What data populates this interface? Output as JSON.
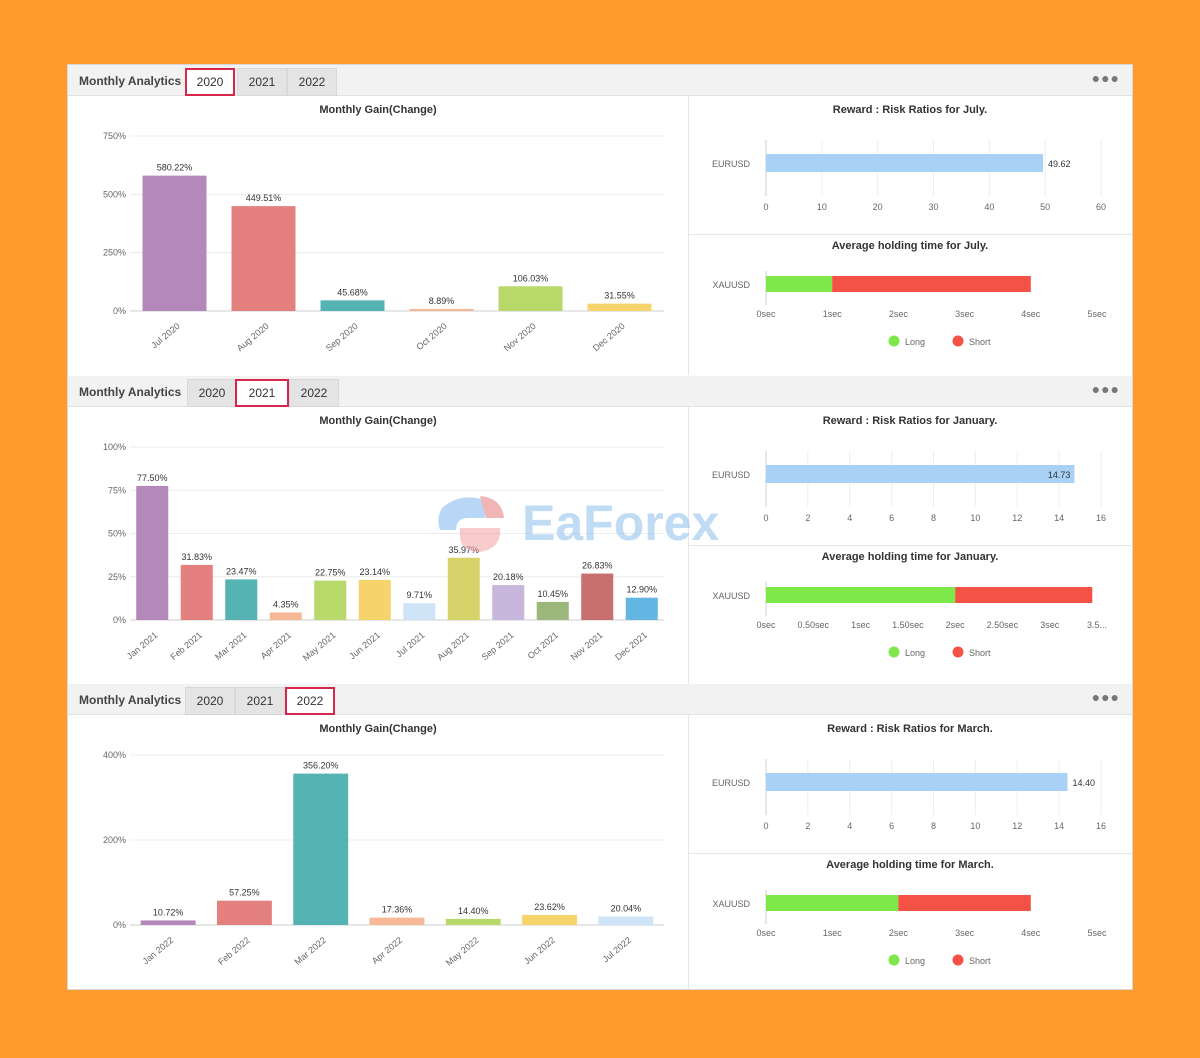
{
  "colors": {
    "background": "#FF9A2E",
    "active_tab_border": "#d6264b",
    "reward_bar": "#a9d1f5",
    "long": "#7ee84a",
    "short": "#f55246"
  },
  "watermark": {
    "text": "EaForex",
    "icon": "eaforex-logo-icon"
  },
  "panels": [
    {
      "title": "Monthly Analytics",
      "tabs": [
        "2020",
        "2021",
        "2022"
      ],
      "active_tab": 0,
      "menu_icon": "more-dots-icon",
      "gain_chart": {
        "type": "bar",
        "title": "Monthly Gain(Change)",
        "y_ticks": [
          "750%",
          "500%",
          "250%",
          "0%"
        ],
        "y_tick_values": [
          750,
          500,
          250,
          0
        ],
        "ylim": [
          0,
          750
        ],
        "categories": [
          "Jul 2020",
          "Aug 2020",
          "Sep 2020",
          "Oct 2020",
          "Nov 2020",
          "Dec 2020"
        ],
        "values": [
          580.22,
          449.51,
          45.68,
          8.89,
          106.03,
          31.55
        ],
        "labels": [
          "580.22%",
          "449.51%",
          "45.68%",
          "8.89%",
          "106.03%",
          "31.55%"
        ],
        "colors": [
          "#b488b8",
          "#e4807e",
          "#55b3b4",
          "#f7b898",
          "#b9d86a",
          "#f7d46b"
        ]
      },
      "rr_chart": {
        "type": "bar",
        "title": "Reward : Risk Ratios for July.",
        "category": "EURUSD",
        "value": 49.62,
        "label": "49.62",
        "x_ticks": [
          "0",
          "10",
          "20",
          "30",
          "40",
          "50",
          "60"
        ],
        "x_tick_values": [
          0,
          10,
          20,
          30,
          40,
          50,
          60
        ],
        "xlim": [
          0,
          60
        ]
      },
      "hold_chart": {
        "type": "bar",
        "title": "Average holding time for July.",
        "category": "XAUUSD",
        "long_value": 1,
        "short_value": 3,
        "x_ticks": [
          "0sec",
          "1sec",
          "2sec",
          "3sec",
          "4sec",
          "5sec"
        ],
        "x_tick_values": [
          0,
          1,
          2,
          3,
          4,
          5
        ],
        "xlim": [
          0,
          5
        ],
        "legend": [
          "Long",
          "Short"
        ]
      }
    },
    {
      "title": "Monthly Analytics",
      "tabs": [
        "2020",
        "2021",
        "2022"
      ],
      "active_tab": 1,
      "menu_icon": "more-dots-icon",
      "gain_chart": {
        "type": "bar",
        "title": "Monthly Gain(Change)",
        "y_ticks": [
          "100%",
          "75%",
          "50%",
          "25%",
          "0%"
        ],
        "y_tick_values": [
          100,
          75,
          50,
          25,
          0
        ],
        "ylim": [
          0,
          100
        ],
        "categories": [
          "Jan 2021",
          "Feb 2021",
          "Mar 2021",
          "Apr 2021",
          "May 2021",
          "Jun 2021",
          "Jul 2021",
          "Aug 2021",
          "Sep 2021",
          "Oct 2021",
          "Nov 2021",
          "Dec 2021"
        ],
        "values": [
          77.5,
          31.83,
          23.47,
          4.35,
          22.75,
          23.14,
          9.71,
          35.97,
          20.18,
          10.45,
          26.83,
          12.9
        ],
        "labels": [
          "77.50%",
          "31.83%",
          "23.47%",
          "4.35%",
          "22.75%",
          "23.14%",
          "9.71%",
          "35.97%",
          "20.18%",
          "10.45%",
          "26.83%",
          "12.90%"
        ],
        "colors": [
          "#b488b8",
          "#e4807e",
          "#55b3b4",
          "#f7b898",
          "#b9d86a",
          "#f7d46b",
          "#cfe5f7",
          "#d5d36a",
          "#c8b6dc",
          "#9bb87a",
          "#c87070",
          "#63b6e2"
        ]
      },
      "rr_chart": {
        "type": "bar",
        "title": "Reward : Risk Ratios for January.",
        "category": "EURUSD",
        "value": 14.73,
        "label": "14.73",
        "x_ticks": [
          "0",
          "2",
          "4",
          "6",
          "8",
          "10",
          "12",
          "14",
          "16"
        ],
        "x_tick_values": [
          0,
          2,
          4,
          6,
          8,
          10,
          12,
          14,
          16
        ],
        "xlim": [
          0,
          16
        ]
      },
      "hold_chart": {
        "type": "bar",
        "title": "Average holding time for January.",
        "category": "XAUUSD",
        "long_value": 2,
        "short_value": 1.45,
        "x_ticks": [
          "0sec",
          "0.50sec",
          "1sec",
          "1.50sec",
          "2sec",
          "2.50sec",
          "3sec",
          "3.5..."
        ],
        "x_tick_values": [
          0,
          0.5,
          1,
          1.5,
          2,
          2.5,
          3,
          3.5
        ],
        "xlim": [
          0,
          3.5
        ],
        "legend": [
          "Long",
          "Short"
        ]
      }
    },
    {
      "title": "Monthly Analytics",
      "tabs": [
        "2020",
        "2021",
        "2022"
      ],
      "active_tab": 2,
      "menu_icon": "more-dots-icon",
      "gain_chart": {
        "type": "bar",
        "title": "Monthly Gain(Change)",
        "y_ticks": [
          "400%",
          "200%",
          "0%"
        ],
        "y_tick_values": [
          400,
          200,
          0
        ],
        "ylim": [
          0,
          400
        ],
        "categories": [
          "Jan 2022",
          "Feb 2022",
          "Mar 2022",
          "Apr 2022",
          "May 2022",
          "Jun 2022",
          "Jul 2022"
        ],
        "values": [
          10.72,
          57.25,
          356.2,
          17.36,
          14.4,
          23.62,
          20.04
        ],
        "labels": [
          "10.72%",
          "57.25%",
          "356.20%",
          "17.36%",
          "14.40%",
          "23.62%",
          "20.04%"
        ],
        "colors": [
          "#b488b8",
          "#e4807e",
          "#55b3b4",
          "#f7b898",
          "#b9d86a",
          "#f7d46b",
          "#cfe5f7"
        ]
      },
      "rr_chart": {
        "type": "bar",
        "title": "Reward : Risk Ratios for March.",
        "category": "EURUSD",
        "value": 14.4,
        "label": "14.40",
        "x_ticks": [
          "0",
          "2",
          "4",
          "6",
          "8",
          "10",
          "12",
          "14",
          "16"
        ],
        "x_tick_values": [
          0,
          2,
          4,
          6,
          8,
          10,
          12,
          14,
          16
        ],
        "xlim": [
          0,
          16
        ]
      },
      "hold_chart": {
        "type": "bar",
        "title": "Average holding time for March.",
        "category": "XAUUSD",
        "long_value": 2,
        "short_value": 2,
        "x_ticks": [
          "0sec",
          "1sec",
          "2sec",
          "3sec",
          "4sec",
          "5sec"
        ],
        "x_tick_values": [
          0,
          1,
          2,
          3,
          4,
          5
        ],
        "xlim": [
          0,
          5
        ],
        "legend": [
          "Long",
          "Short"
        ]
      }
    }
  ]
}
